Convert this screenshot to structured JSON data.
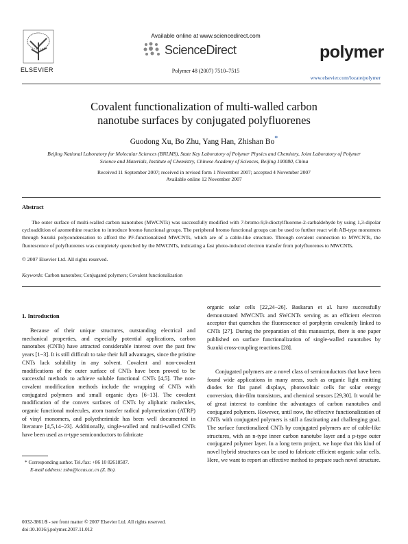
{
  "header": {
    "publisher": "ELSEVIER",
    "available": "Available online at www.sciencedirect.com",
    "service": "ScienceDirect",
    "citation": "Polymer 48 (2007) 7510–7515",
    "journal": "polymer",
    "url": "www.elsevier.com/locate/polymer"
  },
  "article": {
    "title": "Covalent functionalization of multi-walled carbon nanotube surfaces by conjugated polyfluorenes",
    "authors": "Guodong Xu, Bo Zhu, Yang Han, Zhishan Bo",
    "corresponding_mark": "*",
    "affiliation": "Beijing National Laboratory for Molecular Sciences (BNLMS), State Key Laboratory of Polymer Physics and Chemistry, Joint Laboratory of Polymer Science and Materials, Institute of Chemistry, Chinese Academy of Sciences, Beijing 100080, China",
    "dates": [
      "Received 11 September 2007; received in revised form 1 November 2007; accepted 4 November 2007",
      "Available online 12 November 2007"
    ]
  },
  "abstract": {
    "heading": "Abstract",
    "text": "The outer surface of multi-walled carbon nanotubes (MWCNTs) was successfully modified with 7-bromo-9,9-dioctylfluorene-2-carbaldehyde by using 1,3-dipolar cycloaddition of azomethine reaction to introduce bromo functional groups. The peripheral bromo functional groups can be used to further react with AB-type monomers through Suzuki polycondensation to afford the PF-functionalized MWCNTs, which are of a cable-like structure. Through covalent connection to MWCNTs, the fluorescence of polyfluorenes was completely quenched by the MWCNTs, indicating a fast photo-induced electron transfer from polyfluorenes to MWCNTs.",
    "copyright": "© 2007 Elsevier Ltd. All rights reserved.",
    "keywords_label": "Keywords:",
    "keywords": "Carbon nanotubes; Conjugated polymers; Covalent functionalization"
  },
  "body": {
    "section": "1. Introduction",
    "paragraphs": [
      "Because of their unique structures, outstanding electrical and mechanical properties, and especially potential applications, carbon nanotubes (CNTs) have attracted considerable interest over the past few years [1−3]. It is still difficult to take their full advantages, since the pristine CNTs lack solubility in any solvent. Covalent and non-covalent modifications of the outer surface of CNTs have been proved to be successful methods to achieve soluble functional CNTs [4,5]. The non-covalent modification methods include the wrapping of CNTs with conjugated polymers and small organic dyes [6−13]. The covalent modification of the convex surfaces of CNTs by aliphatic molecules, organic functional molecules, atom transfer radical polymerization (ATRP) of vinyl monomers, and polyetherimide has been well documented in literature [4,5,14−23]. Additionally, single-walled and multi-walled CNTs have been used as n-type semiconductors to fabricate",
      "organic solar cells [22,24−26]. Baskaran et al. have successfully demonstrated MWCNTs and SWCNTs serving as an efficient electron acceptor that quenches the fluorescence of porphyrin covalently linked to CNTs [27]. During the preparation of this manuscript, there is one paper published on surface functionalization of single-walled nanotubes by Suzuki cross-coupling reactions [28].",
      "Conjugated polymers are a novel class of semiconductors that have been found wide applications in many areas, such as organic light emitting diodes for flat panel displays, photovoltaic cells for solar energy conversion, thin-film transistors, and chemical sensors [29,30]. It would be of great interest to combine the advantages of carbon nanotubes and conjugated polymers. However, until now, the effective functionalization of CNTs with conjugated polymers is still a fascinating and challenging goal. The surface functionalized CNTs by conjugated polymers are of cable-like structures, with an n-type inner carbon nanotube layer and a p-type outer conjugated polymer layer. In a long term project, we hope that this kind of novel hybrid structures can be used to fabricate efficient organic solar cells. Here, we want to report an effective method to prepare such novel structure."
    ]
  },
  "footnote": [
    "* Corresponding author. Tel./fax: +86 10 82618587.",
    "E-mail address: zsbo@iccas.ac.cn (Z. Bo)."
  ],
  "footer": [
    "0032-3861/$ - see front matter © 2007 Elsevier Ltd. All rights reserved.",
    "doi:10.1016/j.polymer.2007.11.012"
  ]
}
